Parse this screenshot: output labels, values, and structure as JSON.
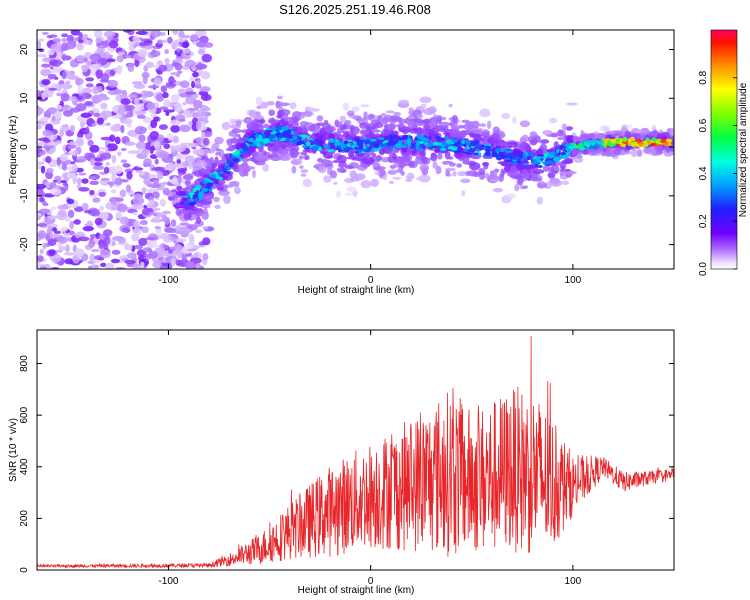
{
  "title": "S126.2025.251.19.46.R08",
  "chart_data": [
    {
      "type": "heatmap",
      "id": "spectrogram",
      "xlabel": "Height of straight line (km)",
      "ylabel": "Frequency (Hz)",
      "xlim": [
        -165,
        150
      ],
      "ylim": [
        -25,
        24
      ],
      "xticks": [
        -100,
        0,
        100
      ],
      "xtick_labels": [
        "-100",
        "0",
        "100"
      ],
      "yticks": [
        20,
        10,
        0,
        -10,
        -20
      ],
      "ytick_labels": [
        "20",
        "10",
        "0",
        "-10",
        "-20"
      ],
      "colorbar": {
        "label": "Normalized spectral amplitude",
        "range": [
          0,
          1
        ],
        "ticks": [
          0.0,
          0.2,
          0.4,
          0.6,
          0.8
        ],
        "tick_labels": [
          "0.0",
          "0.2",
          "0.4",
          "0.6",
          "0.8"
        ]
      },
      "ridge_center_hz": [
        {
          "x": -90,
          "y": -11
        },
        {
          "x": -75,
          "y": -6
        },
        {
          "x": -60,
          "y": 1
        },
        {
          "x": -45,
          "y": 3
        },
        {
          "x": -30,
          "y": 1
        },
        {
          "x": -10,
          "y": 0
        },
        {
          "x": 10,
          "y": 1
        },
        {
          "x": 30,
          "y": 1
        },
        {
          "x": 50,
          "y": 0
        },
        {
          "x": 70,
          "y": -2
        },
        {
          "x": 85,
          "y": -3
        },
        {
          "x": 100,
          "y": 0
        },
        {
          "x": 120,
          "y": 1
        },
        {
          "x": 148,
          "y": 1
        }
      ]
    },
    {
      "type": "line",
      "id": "snr",
      "xlabel": "Height of straight line (km)",
      "ylabel": "SNR (10 * v/v)",
      "xlim": [
        -165,
        150
      ],
      "ylim": [
        0,
        930
      ],
      "xticks": [
        -100,
        0,
        100
      ],
      "xtick_labels": [
        "-100",
        "0",
        "100"
      ],
      "yticks": [
        0,
        200,
        400,
        600,
        800
      ],
      "ytick_labels": [
        "0",
        "200",
        "400",
        "600",
        "800"
      ],
      "color": "#e8262a",
      "envelope": [
        {
          "x": -165,
          "mean": 15,
          "amp": 5
        },
        {
          "x": -80,
          "mean": 18,
          "amp": 8
        },
        {
          "x": -70,
          "mean": 40,
          "amp": 25
        },
        {
          "x": -55,
          "mean": 80,
          "amp": 60
        },
        {
          "x": -40,
          "mean": 150,
          "amp": 110
        },
        {
          "x": -20,
          "mean": 230,
          "amp": 180
        },
        {
          "x": 0,
          "mean": 290,
          "amp": 210
        },
        {
          "x": 20,
          "mean": 330,
          "amp": 260
        },
        {
          "x": 40,
          "mean": 380,
          "amp": 330
        },
        {
          "x": 50,
          "mean": 340,
          "amp": 280
        },
        {
          "x": 60,
          "mean": 360,
          "amp": 300
        },
        {
          "x": 70,
          "mean": 390,
          "amp": 320
        },
        {
          "x": 80,
          "mean": 380,
          "amp": 330
        },
        {
          "x": 90,
          "mean": 330,
          "amp": 260
        },
        {
          "x": 100,
          "mean": 330,
          "amp": 120
        },
        {
          "x": 115,
          "mean": 400,
          "amp": 40
        },
        {
          "x": 125,
          "mean": 340,
          "amp": 40
        },
        {
          "x": 140,
          "mean": 360,
          "amp": 25
        },
        {
          "x": 150,
          "mean": 370,
          "amp": 25
        }
      ]
    }
  ]
}
